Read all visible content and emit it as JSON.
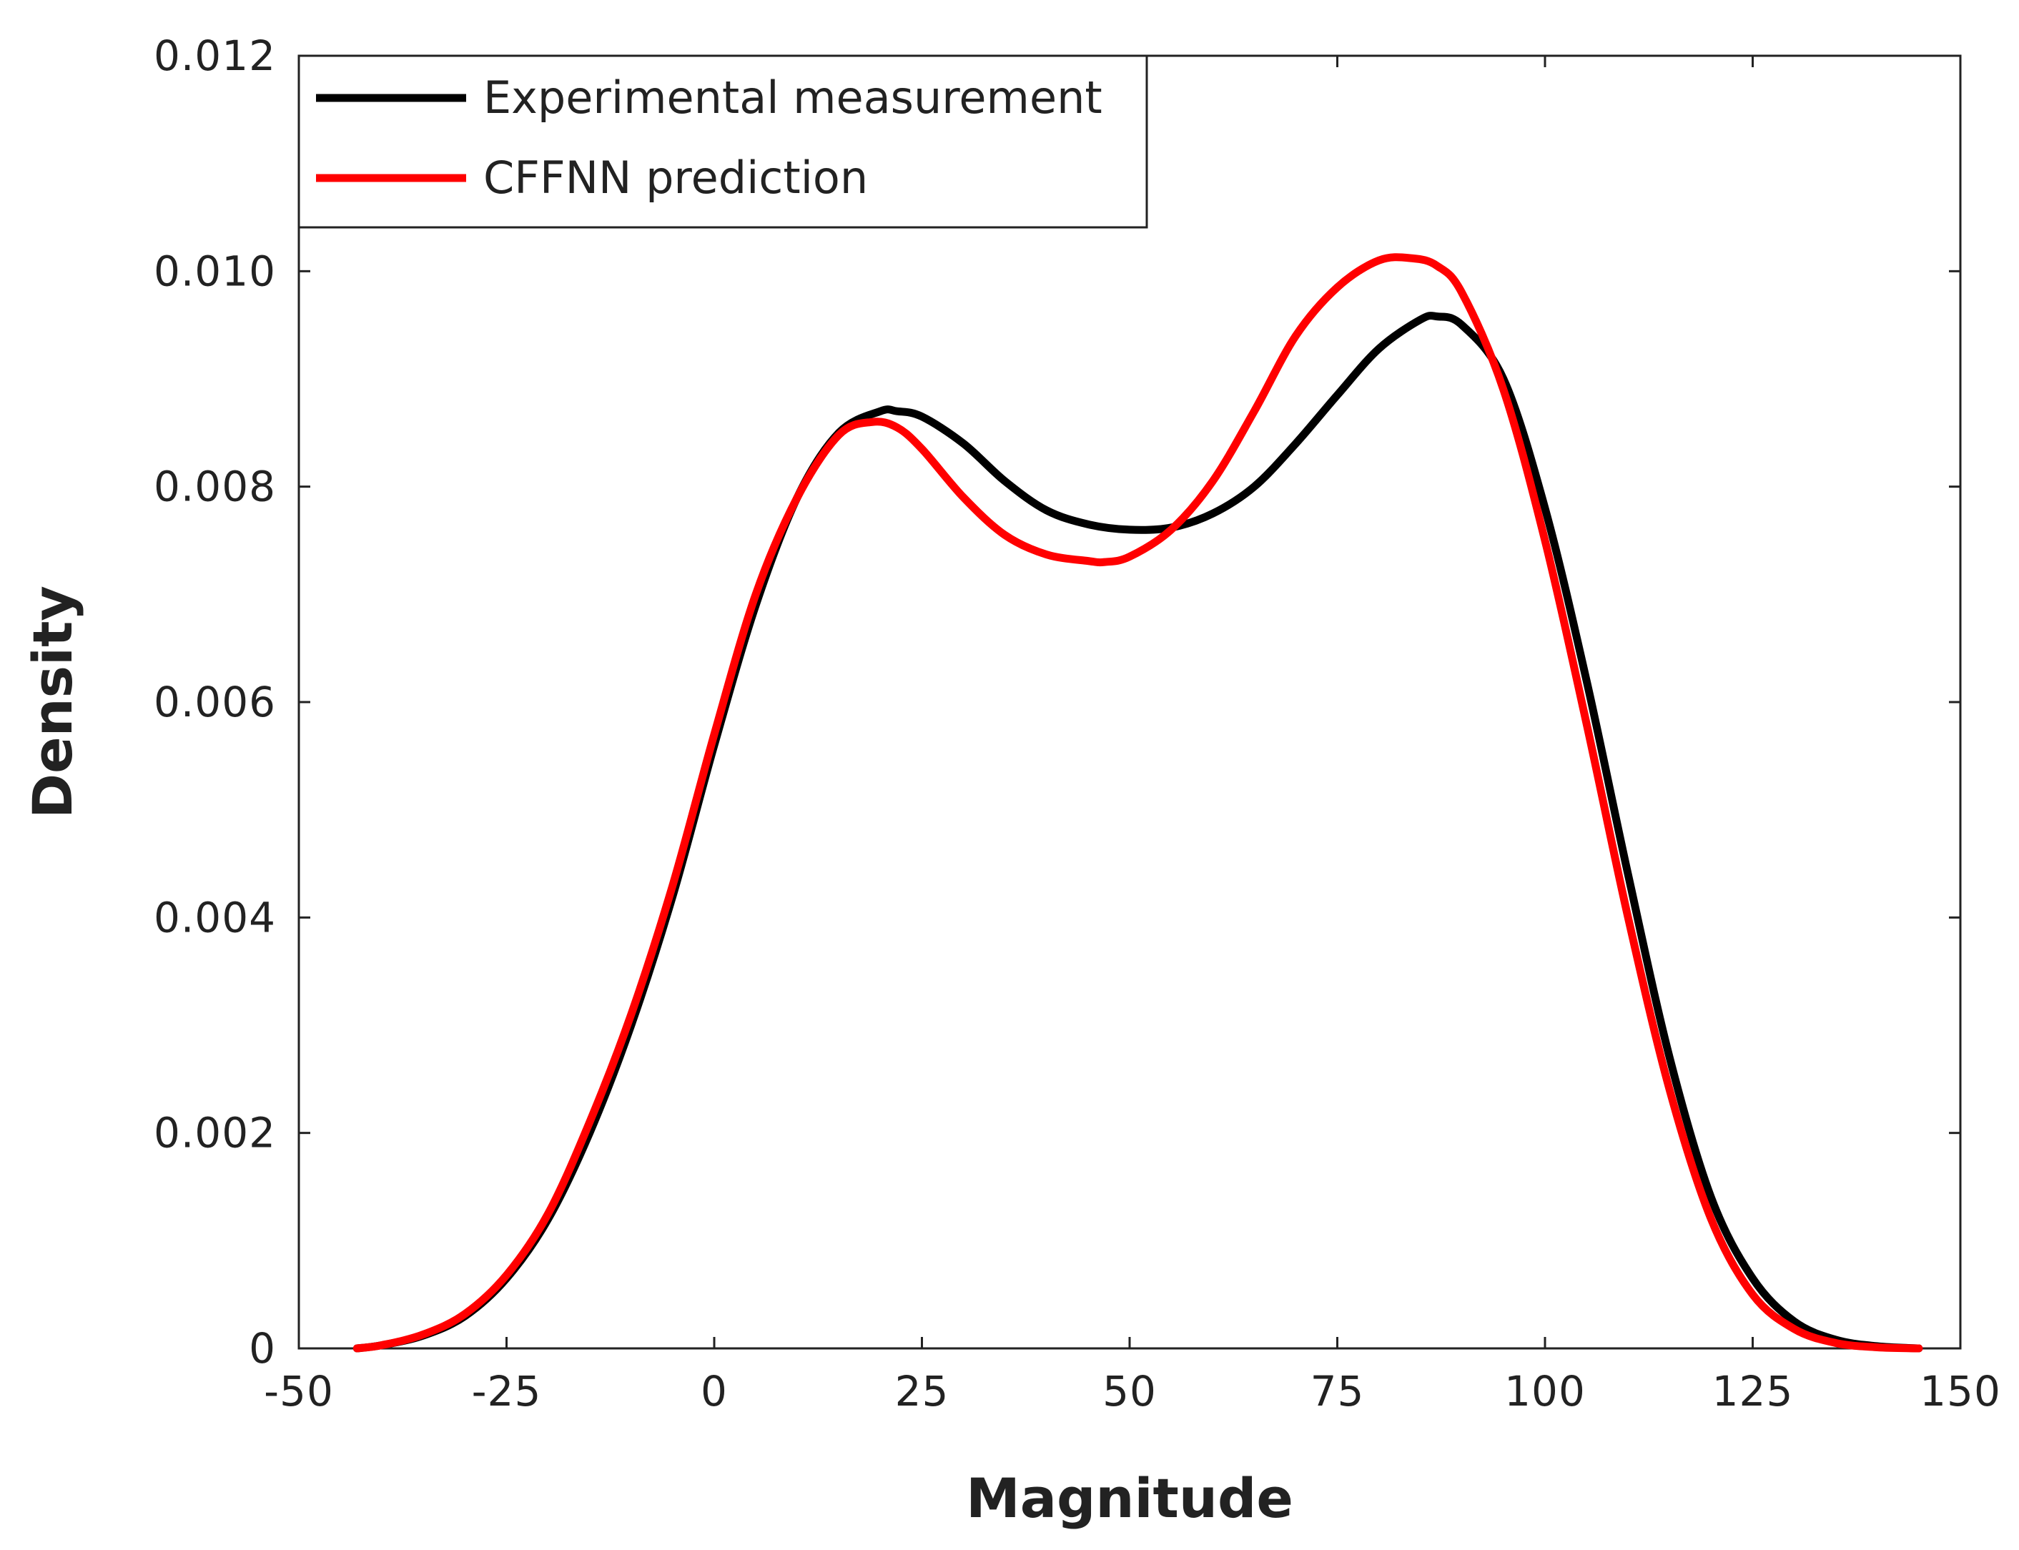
{
  "chart_data": {
    "type": "line",
    "title": "",
    "xlabel": "Magnitude",
    "ylabel": "Density",
    "xlim": [
      -50,
      150
    ],
    "ylim": [
      0,
      0.012
    ],
    "xticks": [
      -50,
      -25,
      0,
      25,
      50,
      75,
      100,
      125,
      150
    ],
    "xtick_labels": [
      "-50",
      "-25",
      "0",
      "25",
      "50",
      "75",
      "100",
      "125",
      "150"
    ],
    "yticks": [
      0,
      0.002,
      0.004,
      0.006,
      0.008,
      0.01,
      0.012
    ],
    "ytick_labels": [
      "0",
      "0.002",
      "0.004",
      "0.006",
      "0.008",
      "0.010",
      "0.012"
    ],
    "grid": false,
    "legend_position": "top-left",
    "series": [
      {
        "name": "Experimental measurement",
        "color": "#000000",
        "x": [
          -43,
          -40,
          -35,
          -30,
          -25,
          -20,
          -15,
          -10,
          -5,
          0,
          5,
          10,
          15,
          20,
          22,
          25,
          30,
          35,
          40,
          45,
          50,
          55,
          60,
          65,
          70,
          75,
          80,
          85,
          87,
          90,
          95,
          100,
          105,
          110,
          115,
          120,
          125,
          130,
          135,
          140,
          145
        ],
        "values": [
          0.0,
          3e-05,
          0.00012,
          0.0003,
          0.00065,
          0.0012,
          0.002,
          0.003,
          0.0042,
          0.0056,
          0.0069,
          0.0079,
          0.0085,
          0.0087,
          0.0087,
          0.00865,
          0.0084,
          0.00805,
          0.00778,
          0.00765,
          0.0076,
          0.00762,
          0.00775,
          0.008,
          0.0084,
          0.00885,
          0.00928,
          0.00955,
          0.00958,
          0.0095,
          0.009,
          0.0078,
          0.0062,
          0.0044,
          0.0027,
          0.0014,
          0.00065,
          0.00025,
          8e-05,
          2e-05,
          0.0
        ]
      },
      {
        "name": "CFFNN prediction",
        "color": "#ff0000",
        "x": [
          -43,
          -40,
          -35,
          -30,
          -25,
          -20,
          -15,
          -10,
          -5,
          0,
          5,
          10,
          15,
          19,
          22,
          25,
          30,
          35,
          40,
          45,
          47,
          50,
          55,
          60,
          65,
          70,
          75,
          80,
          84,
          87,
          90,
          95,
          100,
          105,
          110,
          115,
          120,
          125,
          130,
          135,
          140,
          145
        ],
        "values": [
          0.0,
          3e-05,
          0.00013,
          0.00032,
          0.00068,
          0.00125,
          0.0021,
          0.0031,
          0.0043,
          0.0057,
          0.007,
          0.0079,
          0.00848,
          0.0086,
          0.00855,
          0.00835,
          0.0079,
          0.00755,
          0.00737,
          0.00731,
          0.0073,
          0.00735,
          0.0076,
          0.00805,
          0.0087,
          0.0094,
          0.00985,
          0.0101,
          0.01012,
          0.01005,
          0.0098,
          0.0089,
          0.0075,
          0.0058,
          0.004,
          0.0024,
          0.0012,
          0.0005,
          0.00018,
          5e-05,
          1e-05,
          0.0
        ]
      }
    ]
  }
}
